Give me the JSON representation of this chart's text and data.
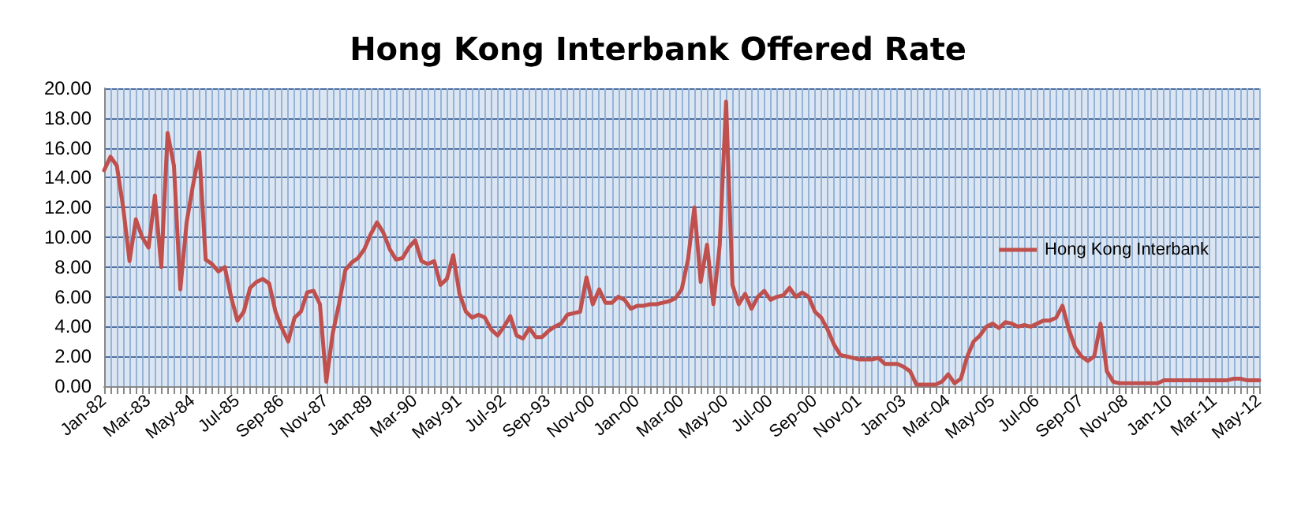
{
  "chart_data": {
    "type": "line",
    "title": "Hong Kong Interbank Offered Rate",
    "categories": [
      "Jan-82",
      null,
      null,
      null,
      null,
      null,
      null,
      "Mar-83",
      null,
      null,
      null,
      null,
      null,
      null,
      "May-84",
      null,
      null,
      null,
      null,
      null,
      null,
      "Jul-85",
      null,
      null,
      null,
      null,
      null,
      null,
      "Sep-86",
      null,
      null,
      null,
      null,
      null,
      null,
      "Nov-87",
      null,
      null,
      null,
      null,
      null,
      null,
      "Jan-89",
      null,
      null,
      null,
      null,
      null,
      null,
      "Mar-90",
      null,
      null,
      null,
      null,
      null,
      null,
      "May-91",
      null,
      null,
      null,
      null,
      null,
      null,
      "Jul-92",
      null,
      null,
      null,
      null,
      null,
      null,
      "Sep-93",
      null,
      null,
      null,
      null,
      null,
      null,
      "Nov-00",
      null,
      null,
      null,
      null,
      null,
      null,
      "Jan-00",
      null,
      null,
      null,
      null,
      null,
      null,
      "Mar-00",
      null,
      null,
      null,
      null,
      null,
      null,
      "May-00",
      null,
      null,
      null,
      null,
      null,
      null,
      "Jul-00",
      null,
      null,
      null,
      null,
      null,
      null,
      "Sep-00",
      null,
      null,
      null,
      null,
      null,
      null,
      "Nov-01",
      null,
      null,
      null,
      null,
      null,
      null,
      "Jan-03",
      null,
      null,
      null,
      null,
      null,
      null,
      "Mar-04",
      null,
      null,
      null,
      null,
      null,
      null,
      "May-05",
      null,
      null,
      null,
      null,
      null,
      null,
      "Jul-06",
      null,
      null,
      null,
      null,
      null,
      null,
      "Sep-07",
      null,
      null,
      null,
      null,
      null,
      null,
      "Nov-08",
      null,
      null,
      null,
      null,
      null,
      null,
      "Jan-10",
      null,
      null,
      null,
      null,
      null,
      null,
      "Mar-11",
      null,
      null,
      null,
      null,
      null,
      null,
      "May-12"
    ],
    "series": [
      {
        "name": "Hong Kong Interbank",
        "color": "#c0504d",
        "values": [
          14.5,
          15.4,
          14.8,
          12.0,
          8.4,
          11.2,
          10.0,
          9.3,
          12.8,
          8.0,
          17.0,
          14.8,
          6.5,
          11.0,
          13.5,
          15.7,
          8.5,
          8.2,
          7.7,
          8.0,
          6.0,
          4.4,
          5.0,
          6.6,
          7.0,
          7.2,
          6.9,
          5.0,
          3.9,
          3.0,
          4.6,
          5.0,
          6.3,
          6.4,
          5.5,
          0.3,
          3.5,
          5.5,
          7.8,
          8.3,
          8.6,
          9.2,
          10.2,
          11.0,
          10.3,
          9.2,
          8.5,
          8.6,
          9.3,
          9.8,
          8.4,
          8.2,
          8.4,
          6.8,
          7.2,
          8.8,
          6.2,
          5.0,
          4.6,
          4.8,
          4.6,
          3.8,
          3.4,
          4.0,
          4.7,
          3.4,
          3.2,
          3.9,
          3.3,
          3.3,
          3.7,
          4.0,
          4.2,
          4.8,
          4.9,
          5.0,
          7.3,
          5.5,
          6.5,
          5.6,
          5.6,
          6.0,
          5.8,
          5.2,
          5.4,
          5.4,
          5.5,
          5.5,
          5.6,
          5.7,
          5.9,
          6.5,
          8.5,
          12.0,
          7.0,
          9.5,
          5.5,
          9.5,
          19.1,
          6.8,
          5.5,
          6.2,
          5.2,
          6.0,
          6.4,
          5.8,
          6.0,
          6.1,
          6.6,
          6.0,
          6.3,
          6.0,
          5.0,
          4.6,
          3.8,
          2.8,
          2.1,
          2.0,
          1.9,
          1.8,
          1.8,
          1.8,
          1.9,
          1.5,
          1.5,
          1.5,
          1.3,
          1.0,
          0.1,
          0.1,
          0.1,
          0.1,
          0.3,
          0.8,
          0.2,
          0.5,
          2.0,
          3.0,
          3.4,
          4.0,
          4.2,
          3.9,
          4.3,
          4.2,
          4.0,
          4.1,
          4.0,
          4.2,
          4.4,
          4.4,
          4.6,
          5.4,
          3.8,
          2.6,
          2.0,
          1.7,
          2.0,
          4.2,
          1.0,
          0.3,
          0.2,
          0.2,
          0.2,
          0.2,
          0.2,
          0.2,
          0.2,
          0.4,
          0.4,
          0.4,
          0.4,
          0.4,
          0.4,
          0.4,
          0.4,
          0.4,
          0.4,
          0.4,
          0.5,
          0.5,
          0.4,
          0.4,
          0.4
        ]
      }
    ],
    "ylim": [
      0,
      20
    ],
    "yticks": [
      {
        "value": 0,
        "label": "0.00"
      },
      {
        "value": 2,
        "label": "2.00"
      },
      {
        "value": 4,
        "label": "4.00"
      },
      {
        "value": 6,
        "label": "6.00"
      },
      {
        "value": 8,
        "label": "8.00"
      },
      {
        "value": 10,
        "label": "10.00"
      },
      {
        "value": 12,
        "label": "12.00"
      },
      {
        "value": 14,
        "label": "14.00"
      },
      {
        "value": 16,
        "label": "16.00"
      },
      {
        "value": 18,
        "label": "18.00"
      },
      {
        "value": 20,
        "label": "20.00"
      }
    ],
    "grid": true,
    "legend": "right",
    "marker": "none",
    "line_style": "solid"
  }
}
